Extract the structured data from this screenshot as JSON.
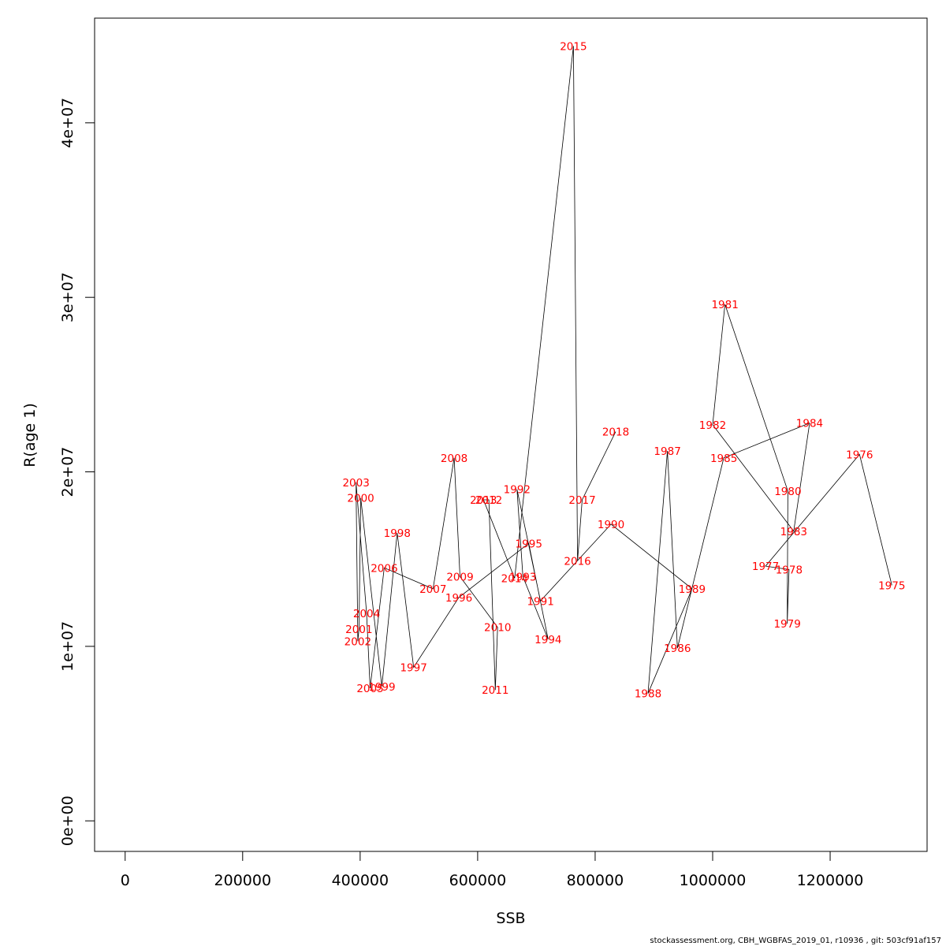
{
  "chart_data": {
    "type": "line",
    "title": "",
    "xlabel": "SSB",
    "ylabel": "R(age 1)",
    "xlim": [
      -52000,
      1365000
    ],
    "ylim": [
      -1750000,
      46000000
    ],
    "x_ticks": [
      0,
      200000,
      400000,
      600000,
      800000,
      1000000,
      1200000
    ],
    "x_tick_labels": [
      "0",
      "200000",
      "400000",
      "600000",
      "800000",
      "1000000",
      "1200000"
    ],
    "y_ticks": [
      0,
      10000000,
      20000000,
      30000000,
      40000000
    ],
    "y_tick_labels": [
      "0e+00",
      "1e+07",
      "2e+07",
      "3e+07",
      "4e+07"
    ],
    "line_color": "#000000",
    "label_color": "#ff0000",
    "points": [
      {
        "year": "1975",
        "x": 1305000,
        "y": 13500000
      },
      {
        "year": "1976",
        "x": 1250000,
        "y": 21000000
      },
      {
        "year": "1977",
        "x": 1090000,
        "y": 14600000
      },
      {
        "year": "1978",
        "x": 1130000,
        "y": 14400000
      },
      {
        "year": "1979",
        "x": 1127000,
        "y": 11300000
      },
      {
        "year": "1980",
        "x": 1128000,
        "y": 18900000
      },
      {
        "year": "1981",
        "x": 1021000,
        "y": 29600000
      },
      {
        "year": "1982",
        "x": 1000000,
        "y": 22700000
      },
      {
        "year": "1983",
        "x": 1138000,
        "y": 16600000
      },
      {
        "year": "1984",
        "x": 1165000,
        "y": 22800000
      },
      {
        "year": "1985",
        "x": 1019000,
        "y": 20800000
      },
      {
        "year": "1986",
        "x": 940000,
        "y": 9900000
      },
      {
        "year": "1987",
        "x": 923000,
        "y": 21200000
      },
      {
        "year": "1988",
        "x": 890000,
        "y": 7300000
      },
      {
        "year": "1989",
        "x": 965000,
        "y": 13300000
      },
      {
        "year": "1990",
        "x": 827000,
        "y": 17000000
      },
      {
        "year": "1991",
        "x": 707000,
        "y": 12600000
      },
      {
        "year": "1992",
        "x": 667000,
        "y": 19000000
      },
      {
        "year": "1993",
        "x": 677000,
        "y": 14000000
      },
      {
        "year": "1994",
        "x": 720000,
        "y": 10400000
      },
      {
        "year": "1995",
        "x": 687000,
        "y": 15900000
      },
      {
        "year": "1996",
        "x": 568000,
        "y": 12800000
      },
      {
        "year": "1997",
        "x": 491000,
        "y": 8800000
      },
      {
        "year": "1998",
        "x": 463000,
        "y": 16500000
      },
      {
        "year": "1999",
        "x": 437000,
        "y": 7700000
      },
      {
        "year": "2000",
        "x": 401000,
        "y": 18500000
      },
      {
        "year": "2001",
        "x": 398000,
        "y": 11000000
      },
      {
        "year": "2002",
        "x": 396000,
        "y": 10300000
      },
      {
        "year": "2003",
        "x": 393000,
        "y": 19400000
      },
      {
        "year": "2004",
        "x": 411000,
        "y": 11900000
      },
      {
        "year": "2005",
        "x": 417000,
        "y": 7600000
      },
      {
        "year": "2006",
        "x": 441000,
        "y": 14500000
      },
      {
        "year": "2007",
        "x": 524000,
        "y": 13300000
      },
      {
        "year": "2008",
        "x": 560000,
        "y": 20800000
      },
      {
        "year": "2009",
        "x": 570000,
        "y": 14000000
      },
      {
        "year": "2010",
        "x": 634000,
        "y": 11100000
      },
      {
        "year": "2011",
        "x": 630000,
        "y": 7500000
      },
      {
        "year": "2012",
        "x": 619000,
        "y": 18400000
      },
      {
        "year": "2013",
        "x": 610000,
        "y": 18400000
      },
      {
        "year": "2014",
        "x": 663000,
        "y": 13900000
      },
      {
        "year": "2015",
        "x": 763000,
        "y": 44400000
      },
      {
        "year": "2016",
        "x": 770000,
        "y": 14900000
      },
      {
        "year": "2017",
        "x": 778000,
        "y": 18400000
      },
      {
        "year": "2018",
        "x": 835000,
        "y": 22300000
      }
    ]
  },
  "footer": "stockassessment.org, CBH_WGBFAS_2019_01, r10936 , git: 503cf91af157"
}
